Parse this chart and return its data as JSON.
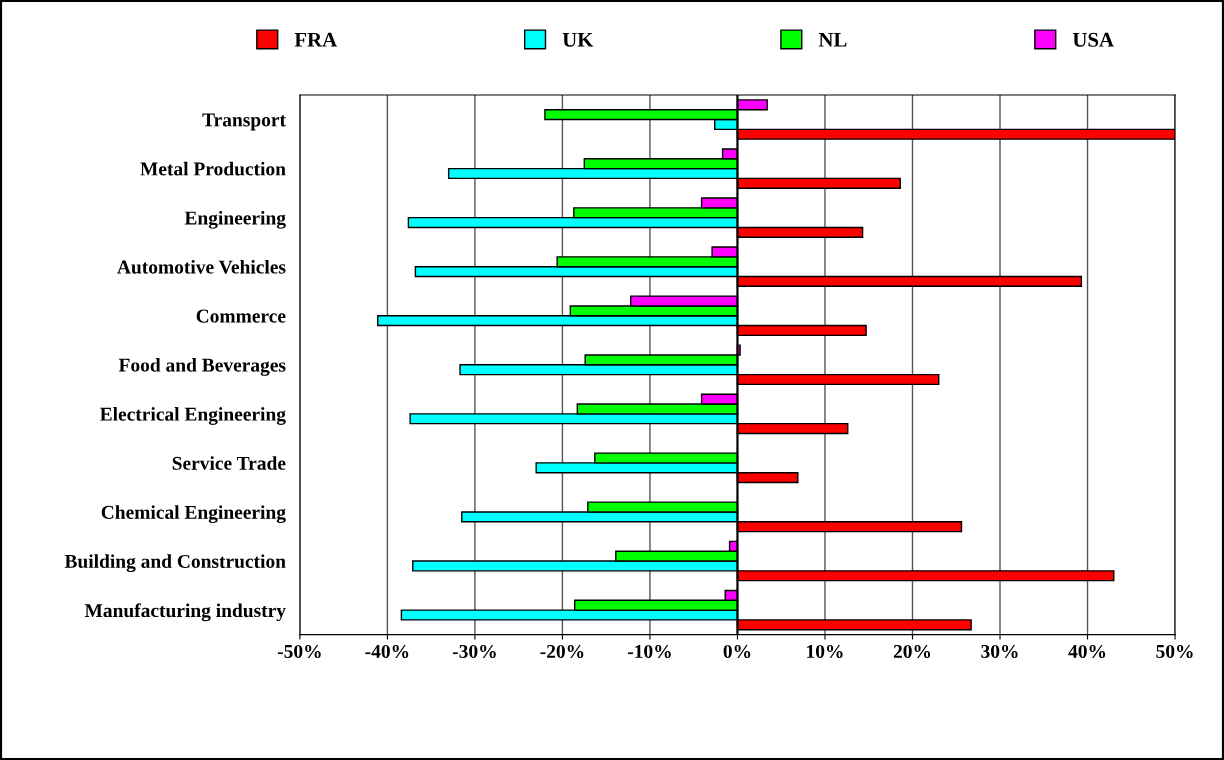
{
  "chart_data": {
    "type": "bar",
    "orientation": "horizontal",
    "categories": [
      "Transport",
      "Metal Production",
      "Engineering",
      "Automotive Vehicles",
      "Commerce",
      "Food and Beverages",
      "Electrical Engineering",
      "Service Trade",
      "Chemical Engineering",
      "Building and Construction",
      "Manufacturing industry"
    ],
    "series": [
      {
        "name": "FRA",
        "color": "#ff0000",
        "values": [
          50,
          18.6,
          14.3,
          39.3,
          14.7,
          23,
          12.6,
          6.9,
          25.6,
          43,
          26.7
        ]
      },
      {
        "name": "UK",
        "color": "#00ffff",
        "values": [
          -2.6,
          -33,
          -37.6,
          -36.8,
          -41.1,
          -31.7,
          -37.4,
          -23,
          -31.5,
          -37.1,
          -38.4
        ]
      },
      {
        "name": "NL",
        "color": "#00ff00",
        "values": [
          -22,
          -17.5,
          -18.7,
          -20.6,
          -19.1,
          -17.4,
          -18.3,
          -16.3,
          -17.1,
          -13.9,
          -18.6
        ]
      },
      {
        "name": "USA",
        "color": "#ff00ff",
        "values": [
          3.4,
          -1.7,
          -4.1,
          -2.9,
          -12.2,
          0.3,
          -4.1,
          null,
          null,
          -0.9,
          -1.4
        ]
      }
    ],
    "xlim": [
      -50,
      50
    ],
    "xticks": [
      {
        "value": -50,
        "label": "-50%"
      },
      {
        "value": -40,
        "label": "-40%"
      },
      {
        "value": -30,
        "label": "-30%"
      },
      {
        "value": -20,
        "label": "-20%"
      },
      {
        "value": -10,
        "label": "-10%"
      },
      {
        "value": 0,
        "label": "0%"
      },
      {
        "value": 10,
        "label": "10%"
      },
      {
        "value": 20,
        "label": "20%"
      },
      {
        "value": 30,
        "label": "30%"
      },
      {
        "value": 40,
        "label": "40%"
      },
      {
        "value": 50,
        "label": "50%"
      }
    ],
    "grid": "x",
    "legend": "top"
  }
}
